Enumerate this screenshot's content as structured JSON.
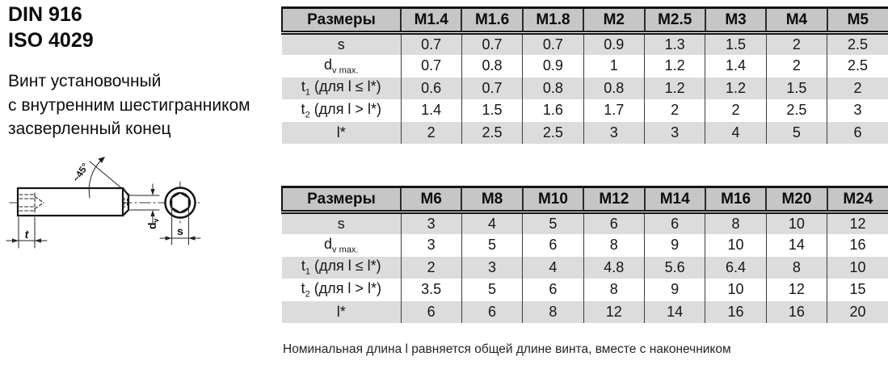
{
  "header": {
    "din": "DIN 916",
    "iso": "ISO 4029"
  },
  "description": [
    "Винт установочный",
    "с внутренним шестигранником",
    "засверленный конец"
  ],
  "drawing": {
    "angle_label": "~45°",
    "t_label": "t",
    "s_label": "s",
    "dv_base": "d",
    "dv_sub": "v"
  },
  "tables": [
    {
      "corner": "Размеры",
      "columns": [
        "M1.4",
        "M1.6",
        "M1.8",
        "M2",
        "M2.5",
        "M3",
        "M4",
        "M5"
      ],
      "rows": [
        {
          "label": [
            {
              "t": "s"
            }
          ],
          "values": [
            "0.7",
            "0.7",
            "0.7",
            "0.9",
            "1.3",
            "1.5",
            "2",
            "2.5"
          ]
        },
        {
          "label": [
            {
              "t": "d"
            },
            {
              "t": "v max.",
              "sub": true
            }
          ],
          "values": [
            "0.7",
            "0.8",
            "0.9",
            "1",
            "1.2",
            "1.4",
            "2",
            "2.5"
          ]
        },
        {
          "label": [
            {
              "t": "t"
            },
            {
              "t": "1",
              "sub": true
            },
            {
              "t": " (для l ≤ l*)"
            }
          ],
          "values": [
            "0.6",
            "0.7",
            "0.8",
            "0.8",
            "1.2",
            "1.2",
            "1.5",
            "2"
          ]
        },
        {
          "label": [
            {
              "t": "t"
            },
            {
              "t": "2",
              "sub": true
            },
            {
              "t": " (для l > l*)"
            }
          ],
          "values": [
            "1.4",
            "1.5",
            "1.6",
            "1.7",
            "2",
            "2",
            "2.5",
            "3"
          ]
        },
        {
          "label": [
            {
              "t": "l*"
            }
          ],
          "values": [
            "2",
            "2.5",
            "2.5",
            "3",
            "3",
            "4",
            "5",
            "6"
          ]
        }
      ]
    },
    {
      "corner": "Размеры",
      "columns": [
        "M6",
        "M8",
        "M10",
        "M12",
        "M14",
        "M16",
        "M20",
        "M24"
      ],
      "rows": [
        {
          "label": [
            {
              "t": "s"
            }
          ],
          "values": [
            "3",
            "4",
            "5",
            "6",
            "6",
            "8",
            "10",
            "12"
          ]
        },
        {
          "label": [
            {
              "t": "d"
            },
            {
              "t": "v max.",
              "sub": true
            }
          ],
          "values": [
            "3",
            "5",
            "6",
            "8",
            "9",
            "10",
            "14",
            "16"
          ]
        },
        {
          "label": [
            {
              "t": "t"
            },
            {
              "t": "1",
              "sub": true
            },
            {
              "t": " (для l ≤ l*)"
            }
          ],
          "values": [
            "2",
            "3",
            "4",
            "4.8",
            "5.6",
            "6.4",
            "8",
            "10"
          ]
        },
        {
          "label": [
            {
              "t": "t"
            },
            {
              "t": "2",
              "sub": true
            },
            {
              "t": " (для l > l*)"
            }
          ],
          "values": [
            "3.5",
            "5",
            "6",
            "8",
            "9",
            "10",
            "12",
            "15"
          ]
        },
        {
          "label": [
            {
              "t": "l*"
            }
          ],
          "values": [
            "6",
            "6",
            "8",
            "12",
            "14",
            "16",
            "16",
            "20"
          ]
        }
      ]
    }
  ],
  "note": "Номинальная длина l равняется общей длине винта, вместе с наконечником",
  "colors": {
    "header_bg": "#c6c6c6",
    "row_alt_bg": "#dcdcdc",
    "row_bg": "#ffffff",
    "border": "#141414",
    "line": "#1a1a1a"
  }
}
